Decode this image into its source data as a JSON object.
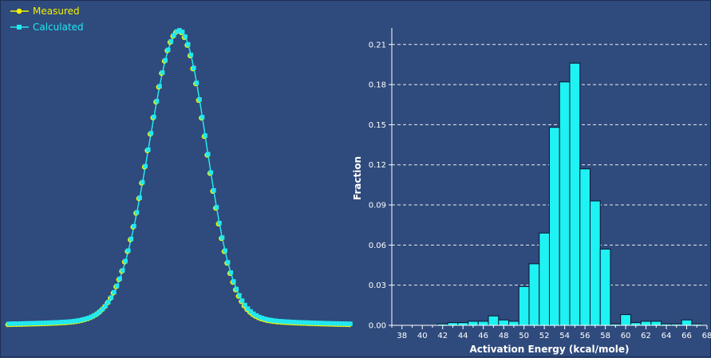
{
  "colors": {
    "background": "#2f4a7c",
    "measured": "#f2f200",
    "calculated": "#22e8f0",
    "bar_fill": "#1ef2f2",
    "bar_stroke": "#0b1530",
    "axis": "#ffffff"
  },
  "chart_data": [
    {
      "type": "scatter",
      "legend": {
        "position": "top-left"
      },
      "series": [
        {
          "name": "Measured",
          "marker": "circle",
          "color": "#f2f200"
        },
        {
          "name": "Calculated",
          "marker": "square",
          "color": "#22e8f0"
        }
      ],
      "curve": {
        "peak_x": 0.5,
        "baseline": 0.01,
        "sigma_left": 0.088,
        "sigma_right": 0.078
      },
      "axes_visible": false,
      "grid": false
    },
    {
      "type": "bar",
      "xlabel": "Activation Energy (kcal/mole)",
      "ylabel": "Fraction",
      "xlim": [
        37,
        68
      ],
      "ylim": [
        0,
        0.22
      ],
      "x_ticks": [
        38,
        40,
        42,
        44,
        46,
        48,
        50,
        52,
        54,
        56,
        58,
        60,
        62,
        64,
        66,
        68
      ],
      "y_ticks": [
        "0.00",
        "0.03",
        "0.06",
        "0.09",
        "0.12",
        "0.15",
        "0.18",
        "0.21"
      ],
      "y_tick_values": [
        0,
        0.03,
        0.06,
        0.09,
        0.12,
        0.15,
        0.18,
        0.21
      ],
      "grid": "horizontal-dashed",
      "x": [
        42,
        43,
        44,
        45,
        46,
        47,
        48,
        49,
        50,
        51,
        52,
        53,
        54,
        55,
        56,
        57,
        58,
        59,
        60,
        61,
        62,
        63,
        64,
        65,
        66,
        67
      ],
      "values": [
        0.001,
        0.002,
        0.002,
        0.003,
        0.003,
        0.007,
        0.004,
        0.003,
        0.029,
        0.046,
        0.069,
        0.148,
        0.182,
        0.196,
        0.117,
        0.093,
        0.057,
        0.001,
        0.008,
        0.002,
        0.003,
        0.003,
        0.001,
        0.001,
        0.004,
        0.001
      ]
    }
  ]
}
